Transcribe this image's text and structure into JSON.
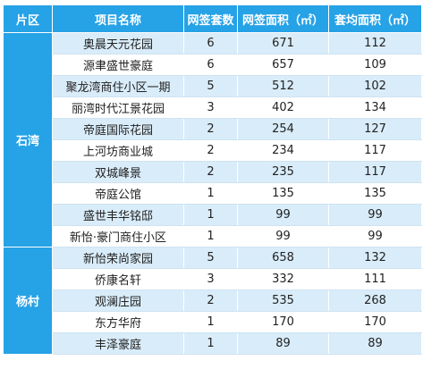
{
  "table": {
    "headers": [
      "片区",
      "项目名称",
      "网签套数",
      "网签面积（㎡）",
      "套均面积（㎡）"
    ],
    "colors": {
      "header_bg": "#26a2e6",
      "row_alt_bg": "#d9ecf9",
      "district_bg": "#26a2e6"
    },
    "groups": [
      {
        "district": "石湾",
        "rows": [
          [
            "奥晨天元花园",
            "6",
            "671",
            "112"
          ],
          [
            "源聿盛世豪庭",
            "6",
            "657",
            "109"
          ],
          [
            "聚龙湾商住小区一期",
            "5",
            "512",
            "102"
          ],
          [
            "丽湾时代江景花园",
            "3",
            "402",
            "134"
          ],
          [
            "帝庭国际花园",
            "2",
            "254",
            "127"
          ],
          [
            "上河坊商业城",
            "2",
            "234",
            "117"
          ],
          [
            "双城峰景",
            "2",
            "235",
            "117"
          ],
          [
            "帝庭公馆",
            "1",
            "135",
            "135"
          ],
          [
            "盛世丰华铭邸",
            "1",
            "99",
            "99"
          ],
          [
            "新怡·豪门商住小区",
            "1",
            "99",
            "99"
          ]
        ]
      },
      {
        "district": "杨村",
        "rows": [
          [
            "新怡荣尚家园",
            "5",
            "658",
            "132"
          ],
          [
            "侨康名轩",
            "3",
            "332",
            "111"
          ],
          [
            "观澜庄园",
            "2",
            "535",
            "268"
          ],
          [
            "东方华府",
            "1",
            "170",
            "170"
          ],
          [
            "丰泽豪庭",
            "1",
            "89",
            "89"
          ]
        ]
      }
    ]
  }
}
